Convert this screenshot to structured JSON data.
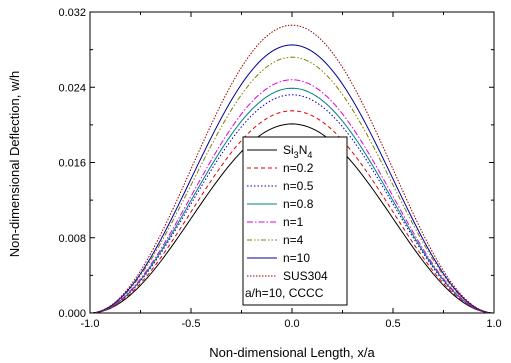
{
  "chart_data": {
    "type": "line",
    "xlabel": "Non-dimensional Length, x/a",
    "ylabel": "Non-dimensional Deflection, w/h",
    "xlim": [
      -1.0,
      1.0
    ],
    "ylim": [
      0.0,
      0.032
    ],
    "x_ticks": [
      "-1.0",
      "-0.5",
      "0.0",
      "0.5",
      "1.0"
    ],
    "y_ticks": [
      "0.000",
      "0.008",
      "0.016",
      "0.024",
      "0.032"
    ],
    "grid": false,
    "legend_position": "center",
    "legend_note": "a/h=10, CCCC",
    "x": [
      -1.0,
      -0.9,
      -0.8,
      -0.7,
      -0.6,
      -0.5,
      -0.4,
      -0.3,
      -0.2,
      -0.1,
      0.0,
      0.1,
      0.2,
      0.3,
      0.4,
      0.5,
      0.6,
      0.7,
      0.8,
      0.9,
      1.0
    ],
    "series": [
      {
        "name": "Si3N4",
        "name_main": "Si",
        "name_sub1": "3",
        "name_mid": "N",
        "name_sub2": "4",
        "peak": 0.0201,
        "color": "#000000",
        "dash": ""
      },
      {
        "name": "n=0.2",
        "peak": 0.0215,
        "color": "#e00000",
        "dash": "4,3"
      },
      {
        "name": "n=0.5",
        "peak": 0.0232,
        "color": "#0000cc",
        "dash": "1.5,2"
      },
      {
        "name": "n=0.8",
        "peak": 0.0239,
        "color": "#008080",
        "dash": ""
      },
      {
        "name": "n=1",
        "peak": 0.0248,
        "color": "#e000e0",
        "dash": "6,2,1.5,2"
      },
      {
        "name": "n=4",
        "peak": 0.0272,
        "color": "#808000",
        "dash": "5,2,1.5,2,1.5,2"
      },
      {
        "name": "n=10",
        "peak": 0.0285,
        "color": "#000099",
        "dash": ""
      },
      {
        "name": "SUS304",
        "peak": 0.0306,
        "color": "#990000",
        "dash": "1.5,1.5"
      }
    ]
  }
}
